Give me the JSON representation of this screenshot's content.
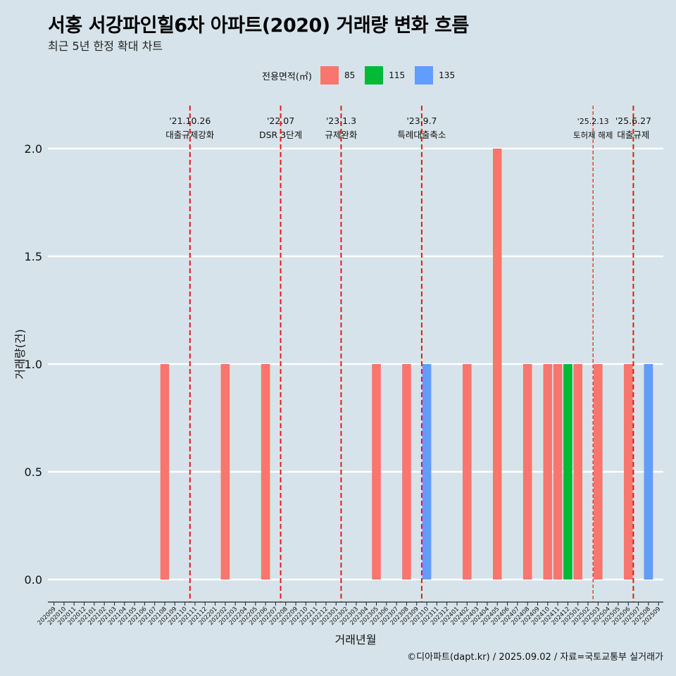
{
  "title": "서홍 서강파인힐6차 아파트(2020) 거래량 변화 흐름",
  "subtitle": "최근 5년 한정 확대 차트",
  "legend": {
    "title": "전용면적(㎡)",
    "items": [
      {
        "label": "85",
        "color": "#f8766d"
      },
      {
        "label": "115",
        "color": "#00ba38"
      },
      {
        "label": "135",
        "color": "#619cff"
      }
    ]
  },
  "footer": "©디아파트(dapt.kr) / 2025.09.02 / 자료=국토교통부 실거래가",
  "chart_data": {
    "type": "bar",
    "xlabel": "거래년월",
    "ylabel": "거래량(건)",
    "ylim": [
      -0.08,
      2.2
    ],
    "yticks": [
      "0.0",
      "0.5",
      "1.0",
      "1.5",
      "2.0"
    ],
    "grid": true,
    "legend_position": "top",
    "categories": [
      "202009",
      "202010",
      "202011",
      "202012",
      "202101",
      "202102",
      "202103",
      "202104",
      "202105",
      "202106",
      "202107",
      "202108",
      "202109",
      "202110",
      "202111",
      "202112",
      "202201",
      "202202",
      "202203",
      "202204",
      "202205",
      "202206",
      "202207",
      "202208",
      "202209",
      "202210",
      "202211",
      "202212",
      "202301",
      "202302",
      "202303",
      "202304",
      "202305",
      "202306",
      "202307",
      "202308",
      "202309",
      "202310",
      "202311",
      "202312",
      "202401",
      "202402",
      "202403",
      "202404",
      "202405",
      "202406",
      "202407",
      "202408",
      "202409",
      "202410",
      "202411",
      "202412",
      "202501",
      "202502",
      "202503",
      "202504",
      "202505",
      "202506",
      "202507",
      "202508",
      "202509"
    ],
    "series": [
      {
        "name": "85",
        "color": "#f8766d",
        "values": [
          0,
          0,
          0,
          0,
          0,
          0,
          0,
          0,
          0,
          0,
          0,
          1,
          0,
          0,
          0,
          0,
          0,
          1,
          0,
          0,
          0,
          1,
          0,
          0,
          0,
          0,
          0,
          0,
          0,
          0,
          0,
          0,
          1,
          0,
          0,
          1,
          0,
          0,
          0,
          0,
          0,
          1,
          0,
          0,
          2,
          0,
          0,
          1,
          0,
          1,
          1,
          0,
          1,
          0,
          1,
          0,
          0,
          1,
          0,
          1,
          0
        ]
      },
      {
        "name": "115",
        "color": "#00ba38",
        "values": [
          0,
          0,
          0,
          0,
          0,
          0,
          0,
          0,
          0,
          0,
          0,
          0,
          0,
          0,
          0,
          0,
          0,
          0,
          0,
          0,
          0,
          0,
          0,
          0,
          0,
          0,
          0,
          0,
          0,
          0,
          0,
          0,
          0,
          0,
          0,
          0,
          0,
          0,
          0,
          0,
          0,
          0,
          0,
          0,
          0,
          0,
          0,
          0,
          0,
          0,
          0,
          1,
          0,
          0,
          0,
          0,
          0,
          0,
          0,
          0,
          0
        ]
      },
      {
        "name": "135",
        "color": "#619cff",
        "values": [
          0,
          0,
          0,
          0,
          0,
          0,
          0,
          0,
          0,
          0,
          0,
          0,
          0,
          0,
          0,
          0,
          0,
          0,
          0,
          0,
          0,
          0,
          0,
          0,
          0,
          0,
          0,
          0,
          0,
          0,
          0,
          0,
          0,
          0,
          0,
          0,
          0,
          1,
          0,
          0,
          0,
          0,
          0,
          0,
          0,
          0,
          0,
          0,
          0,
          0,
          0,
          0,
          0,
          0,
          0,
          0,
          0,
          0,
          0,
          1,
          0
        ]
      }
    ],
    "annotations": [
      {
        "category_pos": 13.5,
        "date": "'21.10.26",
        "label": "대출규제강화",
        "style": "dashed"
      },
      {
        "category_pos": 22.5,
        "date": "'22.07",
        "label": "DSR 3단계",
        "style": "dashed"
      },
      {
        "category_pos": 28.5,
        "date": "'23.1.3",
        "label": "규제완화",
        "style": "dashed"
      },
      {
        "category_pos": 36.5,
        "date": "'23.9.7",
        "label": "특례대출축소",
        "style": "dashed"
      },
      {
        "category_pos": 53.5,
        "date": "'25.2.13",
        "label": "토허제 해제",
        "style": "dashed-thin"
      },
      {
        "category_pos": 57.5,
        "date": "'25.6.27",
        "label": "대출규제",
        "style": "dashed"
      }
    ]
  }
}
